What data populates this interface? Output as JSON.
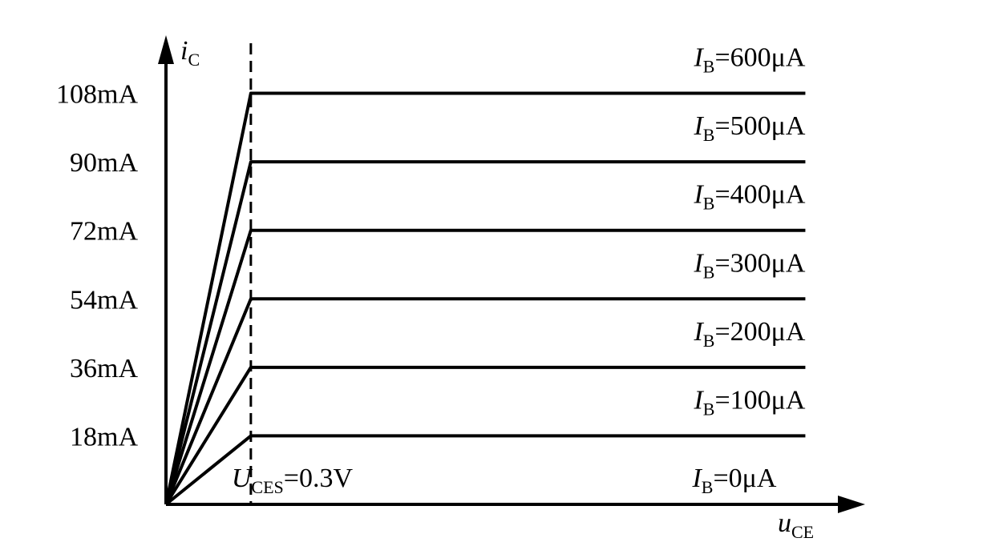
{
  "chart_data": {
    "type": "line",
    "y_label": {
      "main": "i",
      "sub": "C"
    },
    "x_label": {
      "main": "u",
      "sub": "CE"
    },
    "annotation": {
      "main": "U",
      "sub": "CES",
      "rest": "=0.3V"
    },
    "reference_x": 0.3,
    "legend_symbol": {
      "main": "I",
      "sub": "B"
    },
    "x": [
      0,
      0.3,
      2.26
    ],
    "xlim": [
      0,
      2.46
    ],
    "ylim": [
      0,
      122
    ],
    "yticks": [
      {
        "value": 18,
        "label": "18mA"
      },
      {
        "value": 36,
        "label": "36mA"
      },
      {
        "value": 54,
        "label": "54mA"
      },
      {
        "value": 72,
        "label": "72mA"
      },
      {
        "value": 90,
        "label": "90mA"
      },
      {
        "value": 108,
        "label": "108mA"
      }
    ],
    "series": [
      {
        "name": "=0μA",
        "color": "#000000",
        "values": [
          0,
          0,
          0
        ]
      },
      {
        "name": "=100μA",
        "color": "#000000",
        "values": [
          0,
          18,
          18
        ]
      },
      {
        "name": "=200μA",
        "color": "#000000",
        "values": [
          0,
          36,
          36
        ]
      },
      {
        "name": "=300μA",
        "color": "#000000",
        "values": [
          0,
          54,
          54
        ]
      },
      {
        "name": "=400μA",
        "color": "#000000",
        "values": [
          0,
          72,
          72
        ]
      },
      {
        "name": "=500μA",
        "color": "#000000",
        "values": [
          0,
          90,
          90
        ]
      },
      {
        "name": "=600μA",
        "color": "#000000",
        "values": [
          0,
          108,
          108
        ]
      }
    ]
  }
}
